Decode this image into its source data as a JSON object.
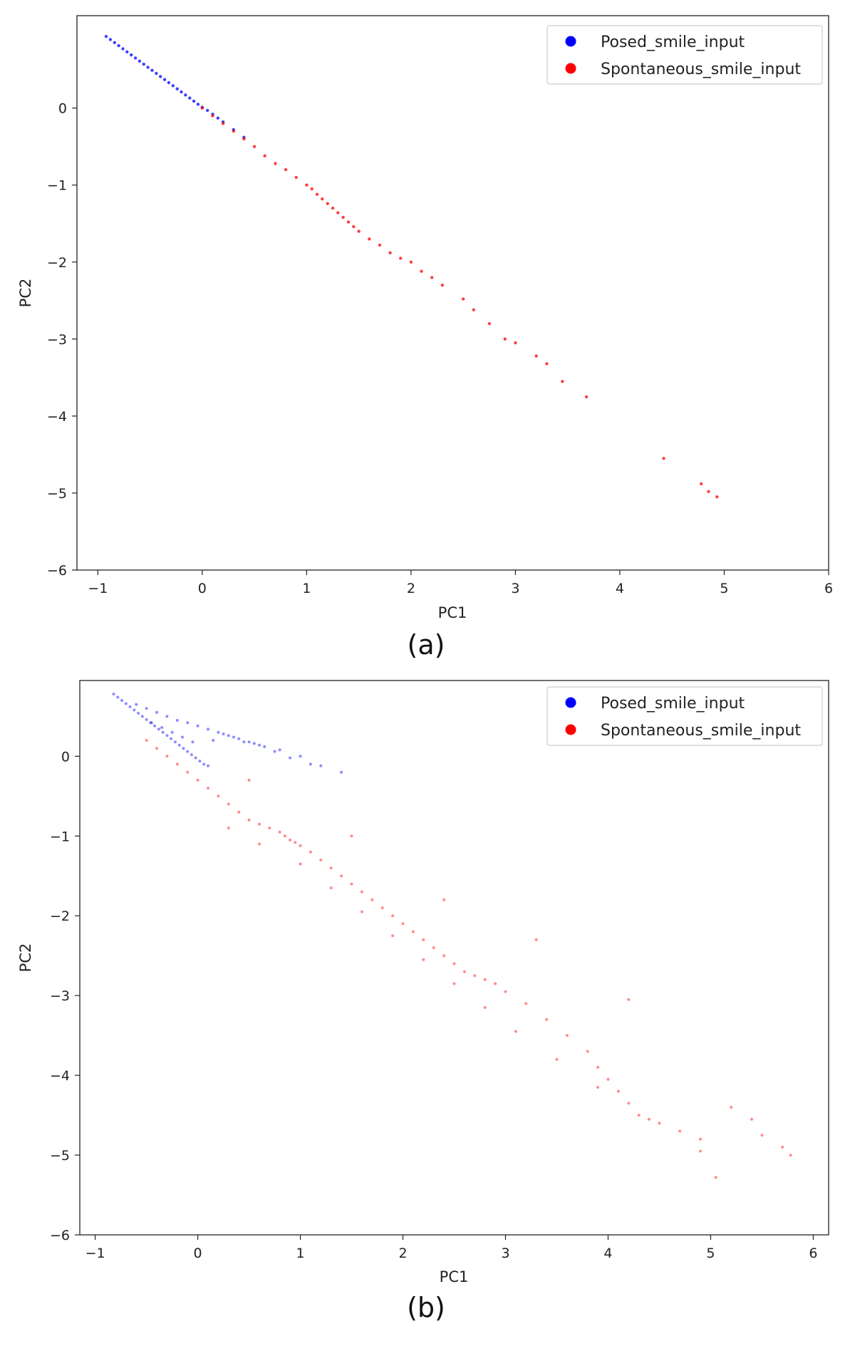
{
  "chart_data": [
    {
      "type": "scatter",
      "caption": "(a)",
      "xlabel": "PC1",
      "ylabel": "PC2",
      "xlim": [
        -1.2,
        6.0
      ],
      "ylim": [
        -6.0,
        1.2
      ],
      "xticks": [
        -1,
        0,
        1,
        2,
        3,
        4,
        5,
        6
      ],
      "yticks": [
        0,
        -1,
        -2,
        -3,
        -4,
        -5,
        -6
      ],
      "grid": false,
      "legend_position": "top-right",
      "series": [
        {
          "name": "Posed_smile_input",
          "color": "#0000ff",
          "x": [
            -0.92,
            -0.88,
            -0.84,
            -0.8,
            -0.76,
            -0.72,
            -0.68,
            -0.64,
            -0.6,
            -0.56,
            -0.52,
            -0.48,
            -0.44,
            -0.4,
            -0.36,
            -0.32,
            -0.28,
            -0.24,
            -0.2,
            -0.16,
            -0.12,
            -0.08,
            -0.04,
            0.0,
            0.05,
            0.1,
            0.15,
            0.2,
            0.3,
            0.4
          ],
          "y": [
            0.93,
            0.89,
            0.85,
            0.81,
            0.77,
            0.73,
            0.69,
            0.65,
            0.61,
            0.57,
            0.53,
            0.49,
            0.45,
            0.41,
            0.37,
            0.33,
            0.29,
            0.25,
            0.21,
            0.17,
            0.13,
            0.09,
            0.05,
            0.01,
            -0.03,
            -0.08,
            -0.13,
            -0.18,
            -0.28,
            -0.38
          ]
        },
        {
          "name": "Spontaneous_smile_input",
          "color": "#ff0000",
          "x": [
            0.0,
            0.1,
            0.2,
            0.3,
            0.4,
            0.5,
            0.6,
            0.7,
            0.8,
            0.9,
            1.0,
            1.05,
            1.1,
            1.15,
            1.2,
            1.25,
            1.3,
            1.35,
            1.4,
            1.45,
            1.5,
            1.6,
            1.7,
            1.8,
            1.9,
            2.0,
            2.1,
            2.2,
            2.3,
            2.5,
            2.6,
            2.75,
            2.9,
            3.0,
            3.2,
            3.3,
            3.45,
            3.68,
            4.42,
            4.78,
            4.85,
            4.93
          ],
          "y": [
            0.0,
            -0.1,
            -0.2,
            -0.3,
            -0.4,
            -0.5,
            -0.62,
            -0.72,
            -0.8,
            -0.9,
            -1.0,
            -1.05,
            -1.12,
            -1.18,
            -1.24,
            -1.3,
            -1.36,
            -1.42,
            -1.48,
            -1.54,
            -1.6,
            -1.7,
            -1.78,
            -1.88,
            -1.95,
            -2.0,
            -2.12,
            -2.2,
            -2.3,
            -2.48,
            -2.62,
            -2.8,
            -3.0,
            -3.05,
            -3.22,
            -3.32,
            -3.55,
            -3.75,
            -4.55,
            -4.88,
            -4.98,
            -5.05
          ]
        }
      ]
    },
    {
      "type": "scatter",
      "caption": "(b)",
      "xlabel": "PC1",
      "ylabel": "PC2",
      "xlim": [
        -1.15,
        6.15
      ],
      "ylim": [
        -6.0,
        0.95
      ],
      "xticks": [
        -1,
        0,
        1,
        2,
        3,
        4,
        5,
        6
      ],
      "yticks": [
        0,
        -1,
        -2,
        -3,
        -4,
        -5,
        -6
      ],
      "grid": false,
      "legend_position": "top-right",
      "series": [
        {
          "name": "Posed_smile_input",
          "color": "#0000ff",
          "x": [
            -0.82,
            -0.78,
            -0.74,
            -0.7,
            -0.66,
            -0.62,
            -0.58,
            -0.54,
            -0.5,
            -0.46,
            -0.42,
            -0.38,
            -0.34,
            -0.3,
            -0.26,
            -0.22,
            -0.18,
            -0.14,
            -0.1,
            -0.06,
            -0.02,
            0.02,
            0.06,
            0.1,
            -0.6,
            -0.5,
            -0.4,
            -0.3,
            -0.2,
            -0.1,
            0.0,
            0.1,
            0.2,
            0.3,
            0.4,
            0.5,
            0.6,
            0.8,
            1.0,
            1.2,
            -0.45,
            -0.35,
            -0.25,
            -0.15,
            -0.05,
            0.15,
            0.25,
            0.35,
            0.45,
            0.55,
            0.65,
            0.75,
            0.9,
            1.1,
            1.4
          ],
          "y": [
            0.78,
            0.74,
            0.7,
            0.66,
            0.62,
            0.58,
            0.54,
            0.5,
            0.46,
            0.42,
            0.38,
            0.34,
            0.3,
            0.26,
            0.22,
            0.18,
            0.14,
            0.1,
            0.06,
            0.02,
            -0.02,
            -0.06,
            -0.1,
            -0.12,
            0.65,
            0.6,
            0.55,
            0.5,
            0.45,
            0.42,
            0.38,
            0.34,
            0.3,
            0.26,
            0.22,
            0.18,
            0.14,
            0.08,
            0.0,
            -0.12,
            0.42,
            0.36,
            0.3,
            0.24,
            0.18,
            0.2,
            0.28,
            0.24,
            0.18,
            0.16,
            0.12,
            0.06,
            -0.02,
            -0.1,
            -0.2
          ]
        },
        {
          "name": "Spontaneous_smile_input",
          "color": "#ff0000",
          "x": [
            -0.5,
            -0.4,
            -0.3,
            -0.2,
            -0.1,
            0.0,
            0.1,
            0.2,
            0.3,
            0.4,
            0.5,
            0.6,
            0.7,
            0.8,
            0.85,
            0.9,
            0.95,
            1.0,
            1.1,
            1.2,
            1.3,
            1.4,
            1.5,
            1.6,
            1.7,
            1.8,
            1.9,
            2.0,
            2.1,
            2.2,
            2.3,
            2.4,
            2.5,
            2.6,
            2.7,
            2.8,
            2.9,
            3.0,
            3.2,
            3.4,
            3.6,
            3.8,
            3.9,
            4.0,
            4.1,
            4.2,
            4.3,
            4.5,
            4.7,
            4.9,
            5.05,
            5.2,
            5.4,
            5.5,
            5.7,
            5.78,
            0.3,
            0.6,
            1.0,
            1.3,
            1.6,
            1.9,
            2.2,
            2.5,
            2.8,
            3.1,
            3.5,
            3.9,
            4.4,
            4.9,
            0.5,
            1.5,
            2.4,
            3.3,
            4.2
          ],
          "y": [
            0.2,
            0.1,
            0.0,
            -0.1,
            -0.2,
            -0.3,
            -0.4,
            -0.5,
            -0.6,
            -0.7,
            -0.8,
            -0.85,
            -0.9,
            -0.95,
            -1.0,
            -1.05,
            -1.08,
            -1.12,
            -1.2,
            -1.3,
            -1.4,
            -1.5,
            -1.6,
            -1.7,
            -1.8,
            -1.9,
            -2.0,
            -2.1,
            -2.2,
            -2.3,
            -2.4,
            -2.5,
            -2.6,
            -2.7,
            -2.75,
            -2.8,
            -2.85,
            -2.95,
            -3.1,
            -3.3,
            -3.5,
            -3.7,
            -3.9,
            -4.05,
            -4.2,
            -4.35,
            -4.5,
            -4.6,
            -4.7,
            -4.8,
            -5.28,
            -4.4,
            -4.55,
            -4.75,
            -4.9,
            -5.0,
            -0.9,
            -1.1,
            -1.35,
            -1.65,
            -1.95,
            -2.25,
            -2.55,
            -2.85,
            -3.15,
            -3.45,
            -3.8,
            -4.15,
            -4.55,
            -4.95,
            -0.3,
            -1.0,
            -1.8,
            -2.3,
            -3.05
          ]
        }
      ]
    }
  ]
}
